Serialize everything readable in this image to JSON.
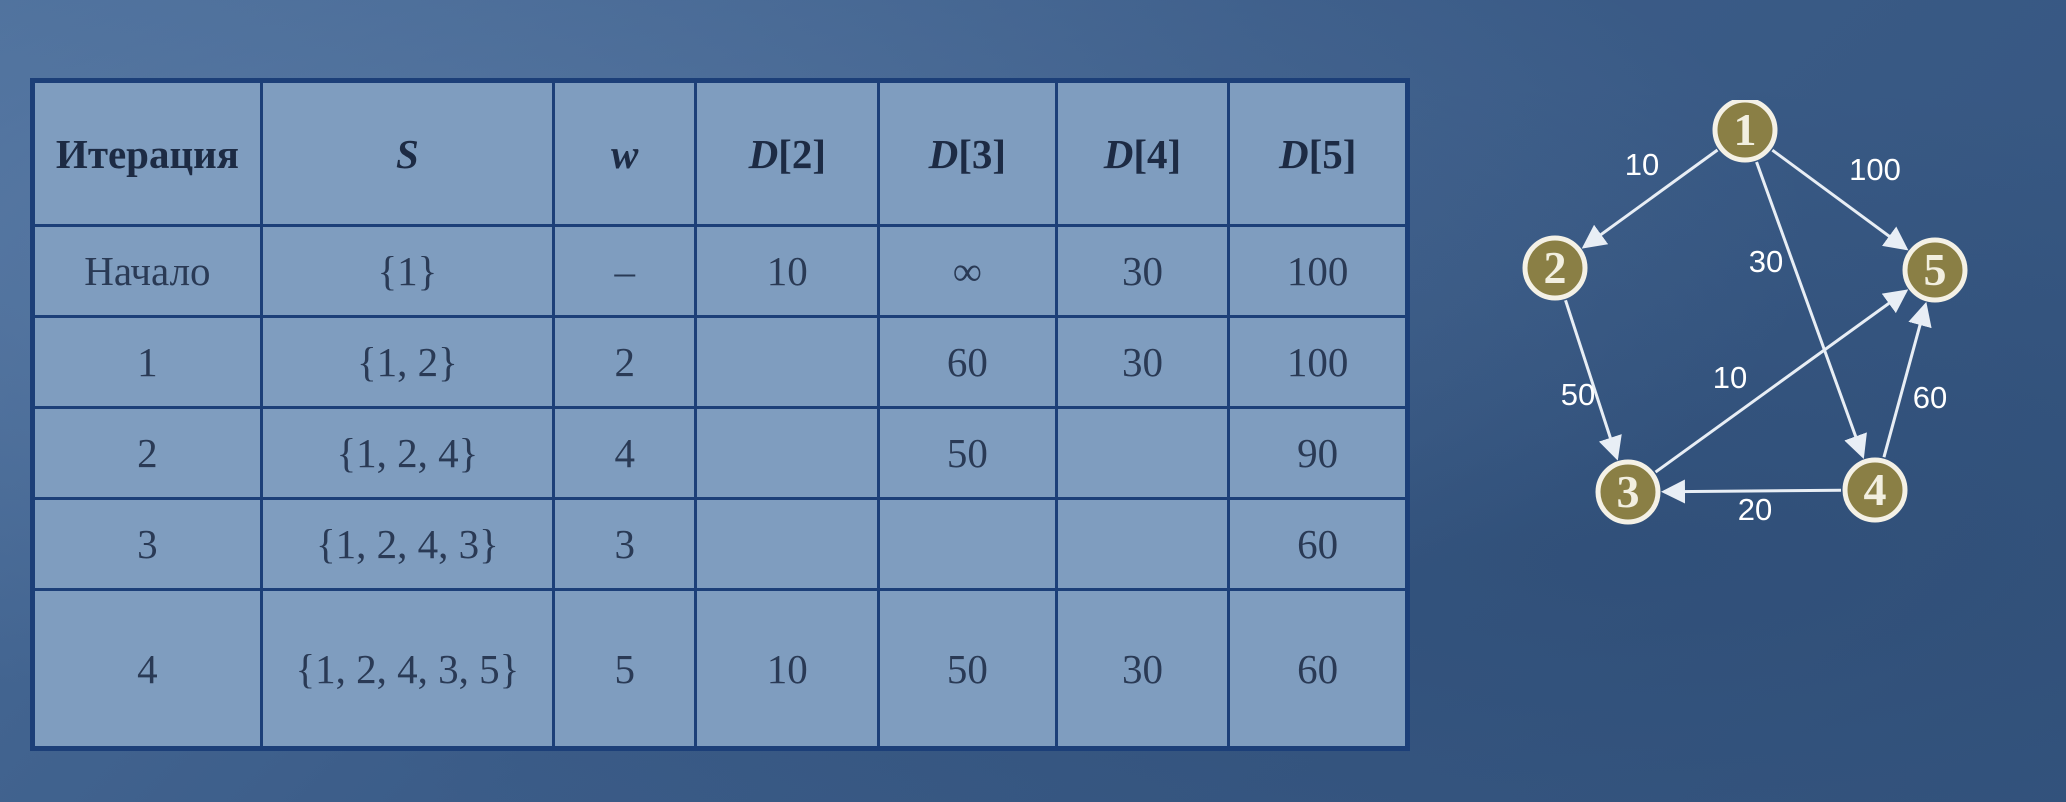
{
  "table": {
    "headers": [
      {
        "text": "Итерация",
        "italic": false
      },
      {
        "text": "S",
        "italic": true
      },
      {
        "text": "w",
        "italic": true
      },
      {
        "text": "D[2]",
        "italic": false
      },
      {
        "text": "D[3]",
        "italic": false
      },
      {
        "text": "D[4]",
        "italic": false
      },
      {
        "text": "D[5]",
        "italic": false
      }
    ],
    "rows": [
      [
        "Начало",
        "{1}",
        "–",
        "10",
        "∞",
        "30",
        "100"
      ],
      [
        "1",
        "{1, 2}",
        "2",
        "",
        "60",
        "30",
        "100"
      ],
      [
        "2",
        "{1, 2, 4}",
        "4",
        "",
        "50",
        "",
        "90"
      ],
      [
        "3",
        "{1, 2, 4, 3}",
        "3",
        "",
        "",
        "",
        "60"
      ],
      [
        "4",
        "{1, 2, 4, 3, 5}",
        "5",
        "10",
        "50",
        "30",
        "60"
      ]
    ]
  },
  "graph": {
    "node_fill": "#8a7f45",
    "node_stroke": "#f4f1e6",
    "edge_color": "#e8eef5",
    "nodes": [
      {
        "id": "1",
        "label": "1"
      },
      {
        "id": "2",
        "label": "2"
      },
      {
        "id": "3",
        "label": "3"
      },
      {
        "id": "4",
        "label": "4"
      },
      {
        "id": "5",
        "label": "5"
      }
    ],
    "edges": [
      {
        "from": "1",
        "to": "2",
        "weight": "10"
      },
      {
        "from": "1",
        "to": "5",
        "weight": "100"
      },
      {
        "from": "1",
        "to": "4",
        "weight": "30"
      },
      {
        "from": "2",
        "to": "3",
        "weight": "50"
      },
      {
        "from": "3",
        "to": "5",
        "weight": "10"
      },
      {
        "from": "4",
        "to": "5",
        "weight": "60"
      },
      {
        "from": "4",
        "to": "3",
        "weight": "20"
      }
    ]
  }
}
